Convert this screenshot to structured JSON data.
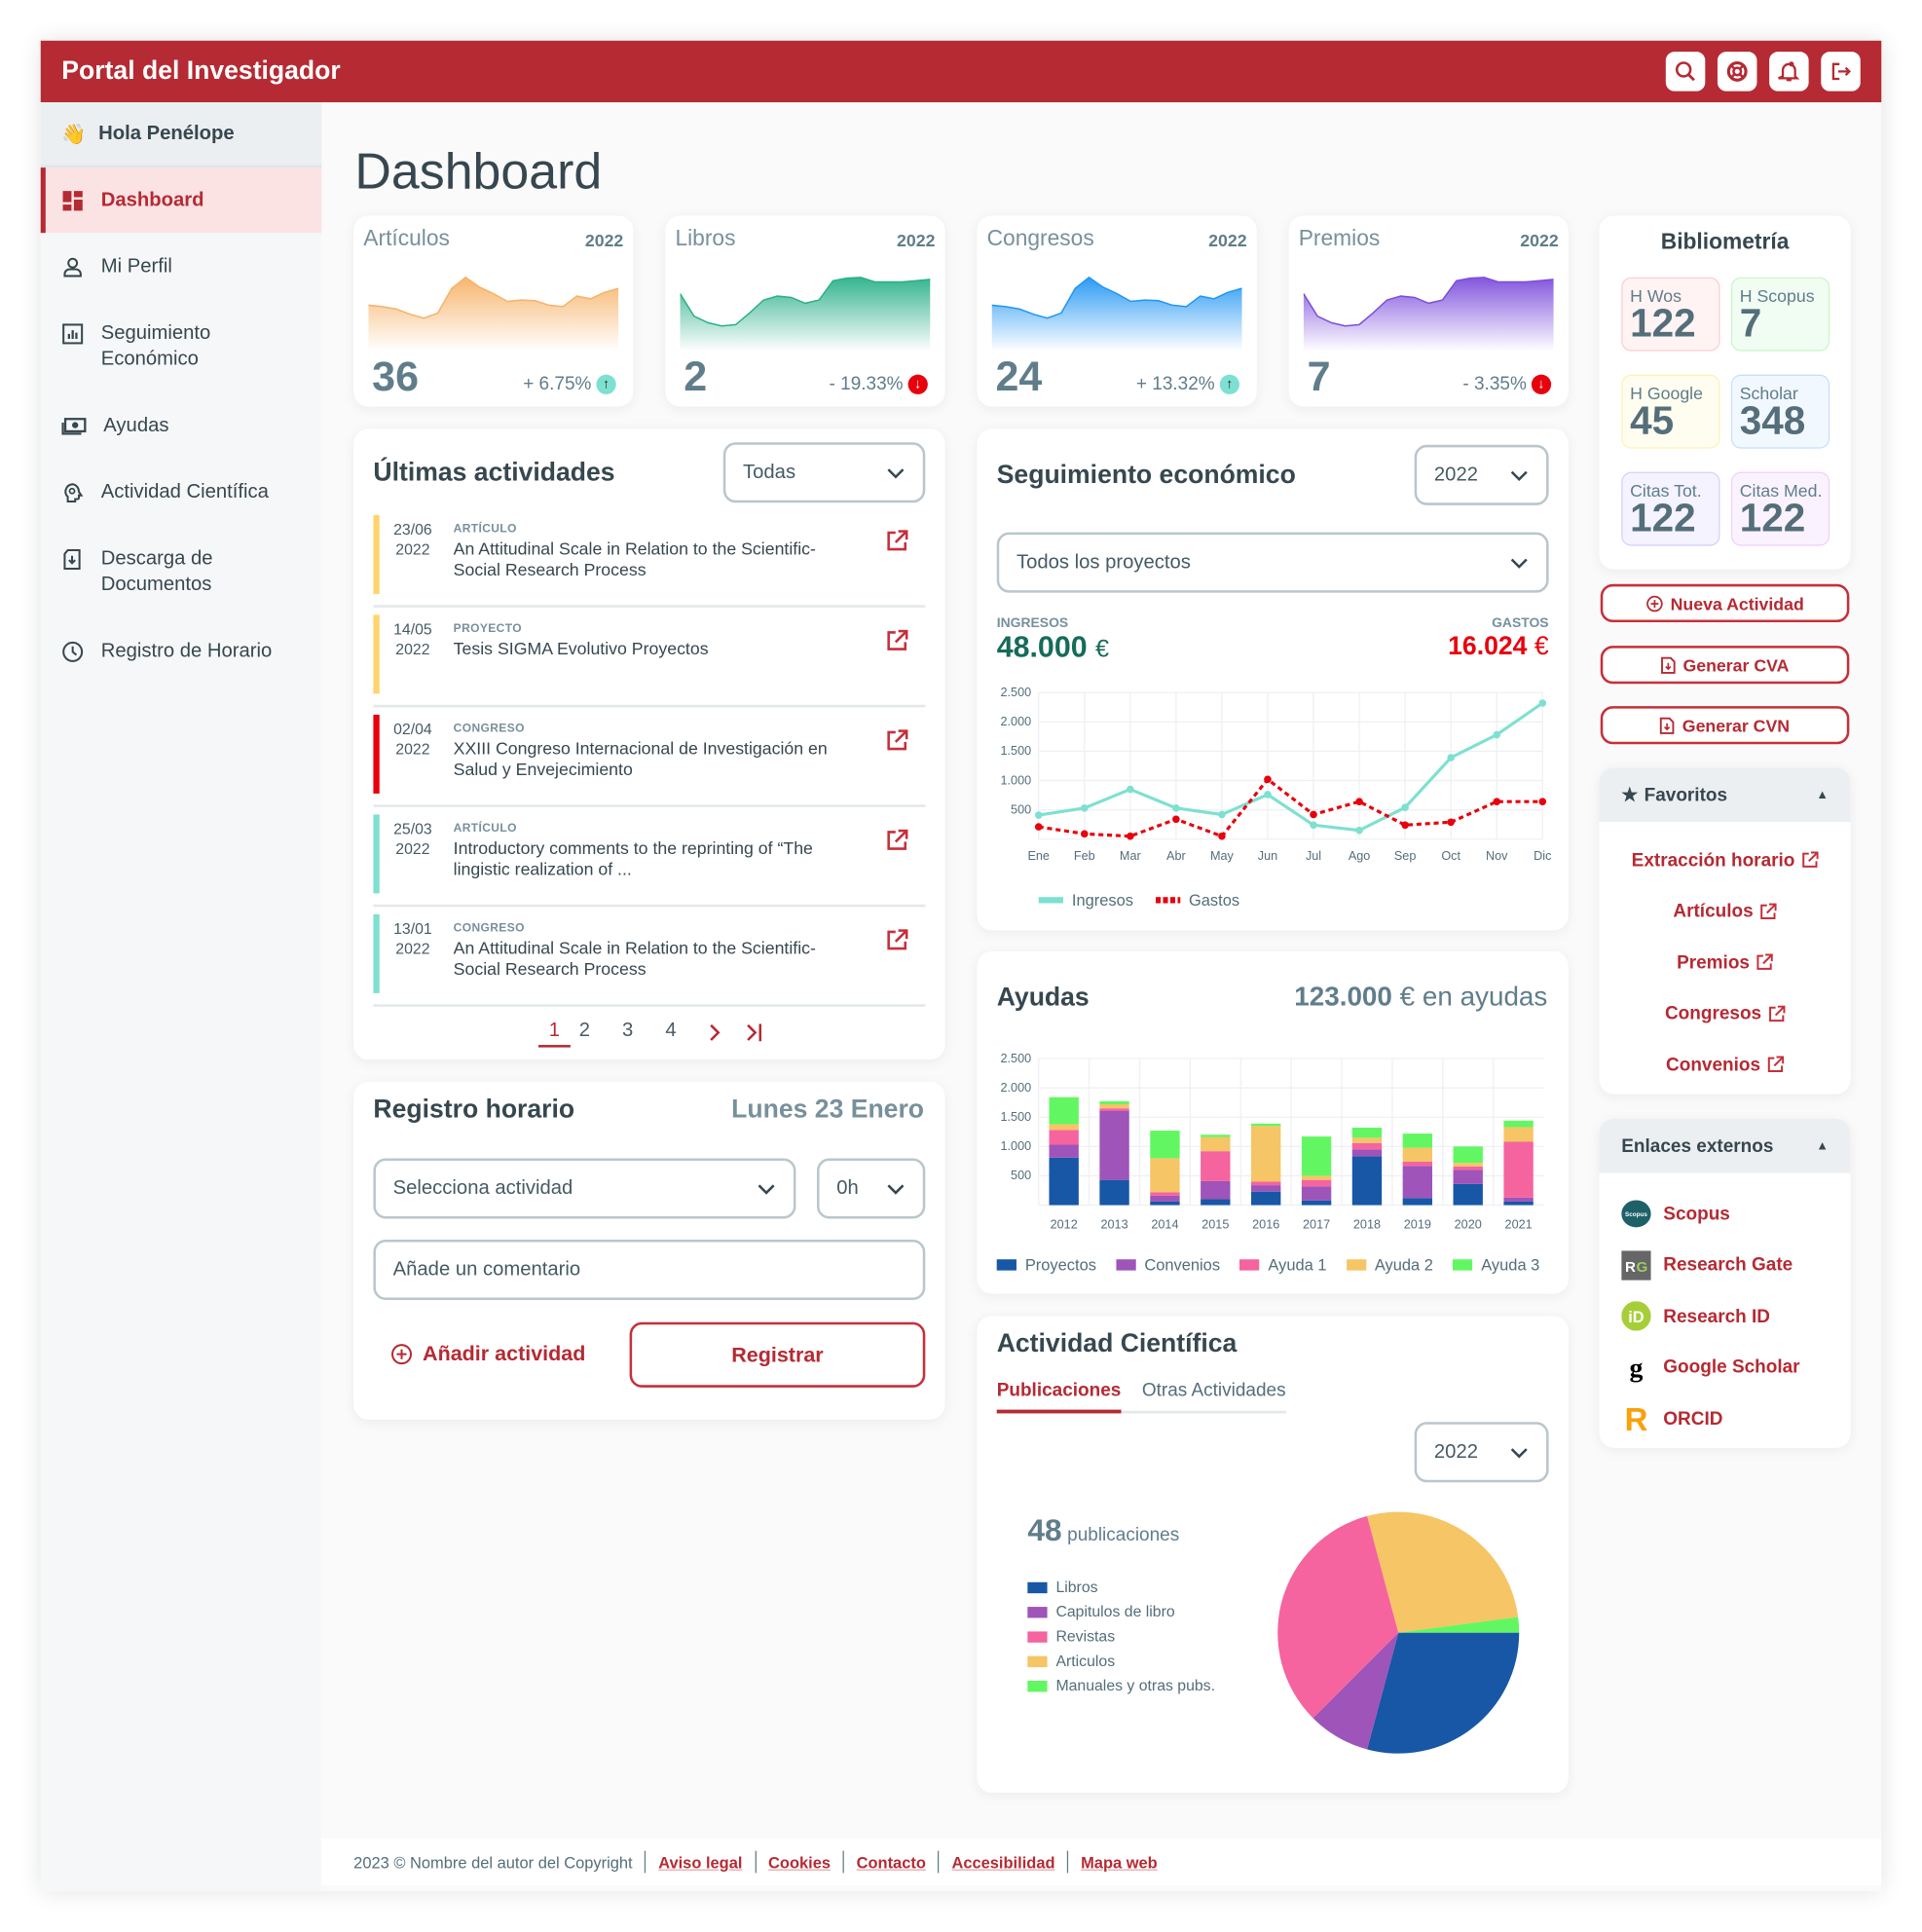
{
  "header": {
    "title": "Portal del Investigador",
    "icons": [
      "search-icon",
      "help-lifebuoy-icon",
      "bell-icon",
      "logout-icon"
    ]
  },
  "sidebar": {
    "greeting": "Hola Penélope",
    "items": [
      {
        "label": "Dashboard",
        "icon": "dashboard-icon",
        "active": true
      },
      {
        "label": "Mi Perfil",
        "icon": "user-icon"
      },
      {
        "label": "Seguimiento Económico",
        "icon": "chart-icon"
      },
      {
        "label": "Ayudas",
        "icon": "money-icon"
      },
      {
        "label": "Actividad Científica",
        "icon": "brain-icon"
      },
      {
        "label": "Descarga de Documentos",
        "icon": "download-doc-icon"
      },
      {
        "label": "Registro de Horario",
        "icon": "clock-icon"
      }
    ]
  },
  "page_title": "Dashboard",
  "kpis": [
    {
      "name": "Artículos",
      "year": "2022",
      "value": "36",
      "change": "+ 6.75%",
      "direction": "up",
      "color": "#f7b267",
      "trend": [
        52,
        50,
        46,
        38,
        32,
        40,
        78,
        95,
        80,
        70,
        58,
        60,
        59,
        52,
        50,
        66,
        62,
        72,
        78
      ]
    },
    {
      "name": "Libros",
      "year": "2022",
      "value": "2",
      "change": "- 19.33%",
      "direction": "down",
      "color": "#2bb089",
      "trend": [
        70,
        35,
        25,
        20,
        22,
        40,
        60,
        66,
        64,
        55,
        60,
        90,
        94,
        95,
        88,
        88,
        88,
        90,
        92
      ]
    },
    {
      "name": "Congresos",
      "year": "2022",
      "value": "24",
      "change": "+ 13.32%",
      "direction": "up",
      "color": "#2196f3",
      "trend": [
        52,
        50,
        46,
        38,
        32,
        40,
        78,
        95,
        80,
        70,
        58,
        60,
        59,
        52,
        50,
        66,
        62,
        72,
        78
      ]
    },
    {
      "name": "Premios",
      "year": "2022",
      "value": "7",
      "change": "- 3.35%",
      "direction": "down",
      "color": "#7c4ddb",
      "trend": [
        70,
        35,
        25,
        20,
        22,
        40,
        60,
        66,
        64,
        55,
        60,
        90,
        94,
        95,
        88,
        88,
        88,
        90,
        92
      ]
    }
  ],
  "activities": {
    "title": "Últimas actividades",
    "filter": "Todas",
    "items": [
      {
        "date": "23/06",
        "year": "2022",
        "type": "ARTÍCULO",
        "title": "An Attitudinal Scale in Relation to the Scientific-Social Research Process",
        "color": "#ffd36e"
      },
      {
        "date": "14/05",
        "year": "2022",
        "type": "PROYECTO",
        "title": "Tesis SIGMA Evolutivo Proyectos",
        "color": "#ffd36e"
      },
      {
        "date": "02/04",
        "year": "2022",
        "type": "CONGRESO",
        "title": "XXIII Congreso Internacional de Investigación en Salud y Envejecimiento",
        "color": "#e8000d"
      },
      {
        "date": "25/03",
        "year": "2022",
        "type": "ARTÍCULO",
        "title": "Introductory comments to the reprinting of “The lingistic realization of ...",
        "color": "#7ee0d0"
      },
      {
        "date": "13/01",
        "year": "2022",
        "type": "CONGRESO",
        "title": "An Attitudinal Scale in Relation to the Scientific-Social Research Process",
        "color": "#7ee0d0"
      }
    ],
    "pages": [
      "1",
      "2",
      "3",
      "4"
    ],
    "current_page": "1"
  },
  "registro": {
    "title": "Registro horario",
    "date": "Lunes 23 Enero",
    "activity_placeholder": "Selecciona actividad",
    "hours": "0h",
    "comment_placeholder": "Añade un comentario",
    "add_label": "Añadir actividad",
    "submit_label": "Registrar"
  },
  "economico": {
    "title": "Seguimiento económico",
    "year": "2022",
    "project": "Todos los proyectos",
    "ingresos_label": "INGRESOS",
    "ingresos": "48.000",
    "gastos_label": "GASTOS",
    "gastos": "16.024",
    "currency": "€"
  },
  "ayudas": {
    "title": "Ayudas",
    "total": "123.000",
    "suffix": "€ en ayudas"
  },
  "cientifica": {
    "title": "Actividad Científica",
    "tabs": [
      "Publicaciones",
      "Otras Actividades"
    ],
    "active_tab": "Publicaciones",
    "year": "2022",
    "count": "48",
    "count_label": "publicaciones"
  },
  "bibliometria": {
    "title": "Bibliometría",
    "items": [
      {
        "label": "H Wos",
        "value": "122",
        "bg": "#fff3f3",
        "border": "#ffcdd2"
      },
      {
        "label": "H Scopus",
        "value": "7",
        "bg": "#f1fdf3",
        "border": "#c8f7c5"
      },
      {
        "label": "H Google",
        "value": "45",
        "bg": "#fffdf0",
        "border": "#fff1b8"
      },
      {
        "label": "Scholar",
        "value": "348",
        "bg": "#f2f8ff",
        "border": "#c6e0fb"
      },
      {
        "label": "Citas Tot.",
        "value": "122",
        "bg": "#f4f3ff",
        "border": "#d6d0fb"
      },
      {
        "label": "Citas Med.",
        "value": "122",
        "bg": "#fbf2ff",
        "border": "#efd0fb"
      }
    ]
  },
  "actions": {
    "nueva": "Nueva Actividad",
    "cva": "Generar CVA",
    "cvn": "Generar CVN"
  },
  "favoritos": {
    "title": "Favoritos",
    "items": [
      "Extracción horario",
      "Artículos",
      "Premios",
      "Congresos",
      "Convenios"
    ]
  },
  "enlaces": {
    "title": "Enlaces externos",
    "items": [
      {
        "label": "Scopus",
        "logo_text": "Scopus"
      },
      {
        "label": "Research Gate",
        "logo_text": "RG"
      },
      {
        "label": "Research ID",
        "logo_text": "iD"
      },
      {
        "label": "Google Scholar",
        "logo_text": "g"
      },
      {
        "label": "ORCID",
        "logo_text": "R"
      }
    ]
  },
  "footer": {
    "copyright": "2023 © Nombre del autor del Copyright",
    "links": [
      "Aviso legal",
      "Cookies",
      "Contacto",
      "Accesibilidad",
      "Mapa web"
    ]
  },
  "chart_data": [
    {
      "type": "line",
      "title": "",
      "xlabel": "",
      "ylabel": "",
      "ylim": [
        0,
        2500
      ],
      "yticks": [
        "2.500",
        "2.000",
        "1.500",
        "1.000",
        "500"
      ],
      "grid": true,
      "legend": "bottom-left",
      "categories": [
        "Ene",
        "Feb",
        "Mar",
        "Abr",
        "May",
        "Jun",
        "Jul",
        "Ago",
        "Sep",
        "Oct",
        "Nov",
        "Dic"
      ],
      "series": [
        {
          "name": "Ingresos",
          "color": "#7ee0d0",
          "style": "solid",
          "values": [
            410,
            530,
            850,
            530,
            420,
            760,
            240,
            150,
            540,
            1390,
            1780,
            2320
          ]
        },
        {
          "name": "Gastos",
          "color": "#e8000d",
          "style": "dotted",
          "values": [
            210,
            90,
            50,
            340,
            50,
            1020,
            420,
            640,
            240,
            290,
            640,
            640
          ]
        }
      ]
    },
    {
      "type": "bar",
      "stacked": true,
      "title": "",
      "ylim": [
        0,
        2500
      ],
      "yticks": [
        "2.500",
        "2.000",
        "1.500",
        "1.000",
        "500"
      ],
      "grid": true,
      "legend": "bottom",
      "categories": [
        "2012",
        "2013",
        "2014",
        "2015",
        "2016",
        "2017",
        "2018",
        "2019",
        "2020",
        "2021"
      ],
      "series": [
        {
          "name": "Proyectos",
          "color": "#1757a6",
          "values": [
            810,
            430,
            60,
            100,
            230,
            80,
            830,
            120,
            360,
            60
          ]
        },
        {
          "name": "Convenios",
          "color": "#9e54b8",
          "values": [
            220,
            1180,
            100,
            310,
            110,
            240,
            120,
            550,
            240,
            70
          ]
        },
        {
          "name": "Ayuda 1",
          "color": "#f5649f",
          "values": [
            250,
            40,
            60,
            510,
            60,
            110,
            110,
            70,
            60,
            950
          ]
        },
        {
          "name": "Ayuda 2",
          "color": "#f6c566",
          "values": [
            100,
            70,
            580,
            240,
            950,
            70,
            90,
            240,
            60,
            250
          ]
        },
        {
          "name": "Ayuda 3",
          "color": "#62f762",
          "values": [
            460,
            50,
            470,
            40,
            40,
            670,
            170,
            240,
            280,
            110
          ]
        }
      ]
    },
    {
      "type": "pie",
      "title": "",
      "legend": "left",
      "categories": [
        "Libros",
        "Capitulos de libro",
        "Revistas",
        "Articulos",
        "Manuales y otras pubs."
      ],
      "values": [
        14,
        4,
        16,
        13,
        1
      ],
      "colors": [
        "#1757a6",
        "#9e54b8",
        "#f5649f",
        "#f6c566",
        "#62f762"
      ]
    }
  ]
}
